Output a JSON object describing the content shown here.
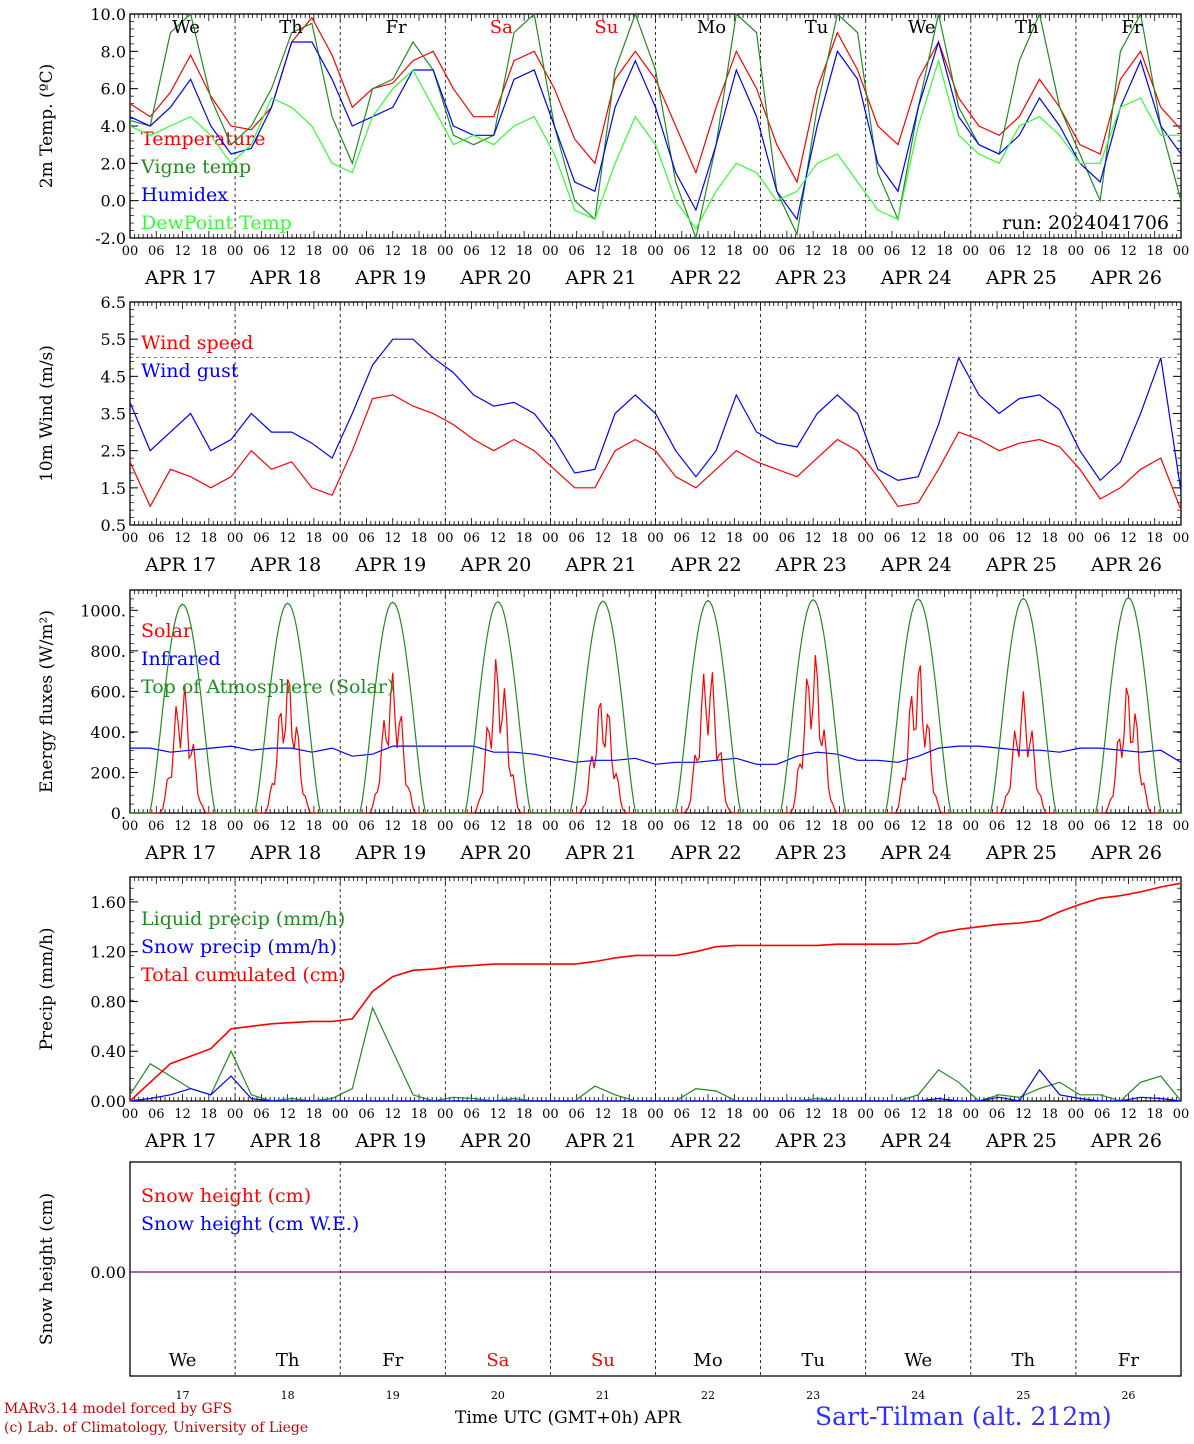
{
  "x_axis": {
    "day_labels": [
      "APR 17",
      "APR 18",
      "APR 19",
      "APR 20",
      "APR 21",
      "APR 22",
      "APR 23",
      "APR 24",
      "APR 25",
      "APR 26"
    ],
    "hour_labels": [
      "00",
      "06",
      "12",
      "18"
    ],
    "last_hour_label": "00",
    "weekdays": [
      "We",
      "Th",
      "Fr",
      "Sa",
      "Su",
      "Mo",
      "Tu",
      "We",
      "Th",
      "Fr"
    ],
    "weekend_weekdays": [
      "Sa",
      "Su"
    ],
    "day_numbers": [
      "17",
      "18",
      "19",
      "20",
      "21",
      "22",
      "23",
      "24",
      "25",
      "26"
    ],
    "xlabel": "Time UTC (GMT+0h)",
    "month": "APR"
  },
  "footer": {
    "model_line": "MARv3.14 model forced by GFS",
    "lab_line": "(c) Lab. of Climatology, University of Liege",
    "station": "Sart-Tilman (alt. 212m)"
  },
  "colors": {
    "red": "#ff0000",
    "green": "#228b22",
    "blue": "#0000ff",
    "light_green": "#32ff32",
    "purple": "#800080",
    "footer_red": "#cc0000",
    "station_blue": "#3030ff"
  },
  "chart_data": [
    {
      "id": "temperature",
      "type": "line",
      "ylabel": "2m Temp. (ºC)",
      "ylim": [
        -2.0,
        10.0
      ],
      "yticks": [
        "-2.0",
        "0.0",
        "2.0",
        "4.0",
        "6.0",
        "8.0",
        "10.0"
      ],
      "dashed_ref": 0.0,
      "annotation": "run: 2024041706",
      "series_step_hours": 6,
      "series": [
        {
          "name": "Temperature",
          "color": "red",
          "values": [
            5.2,
            4.5,
            5.8,
            7.8,
            5.6,
            4.0,
            3.8,
            5.0,
            8.5,
            9.8,
            7.8,
            5.0,
            6.0,
            6.3,
            7.5,
            8.0,
            6.0,
            4.5,
            4.5,
            7.5,
            8.0,
            6.0,
            3.3,
            2.0,
            6.5,
            8.0,
            6.5,
            4.0,
            1.5,
            5.0,
            8.0,
            6.0,
            3.0,
            1.0,
            6.0,
            9.0,
            7.0,
            4.0,
            3.0,
            6.5,
            8.5,
            5.5,
            4.0,
            3.5,
            4.5,
            6.5,
            5.0,
            3.0,
            2.5,
            6.5,
            8.0,
            5.0,
            3.8
          ]
        },
        {
          "name": "Vigne temp",
          "color": "green",
          "values": [
            4.3,
            4.0,
            9.0,
            10.0,
            5.5,
            3.0,
            4.0,
            6.0,
            9.0,
            9.5,
            4.5,
            2.0,
            6.0,
            6.5,
            8.5,
            7.0,
            3.5,
            3.0,
            3.5,
            9.0,
            10.0,
            4.0,
            0.0,
            -1.0,
            7.0,
            10.0,
            7.0,
            1.0,
            -2.0,
            3.0,
            10.0,
            9.0,
            0.5,
            -1.8,
            5.0,
            10.0,
            9.0,
            1.5,
            -1.0,
            5.0,
            10.0,
            5.0,
            3.0,
            2.5,
            7.5,
            10.0,
            5.0,
            2.5,
            0.0,
            8.0,
            10.0,
            4.0,
            0.0
          ]
        },
        {
          "name": "Humidex",
          "color": "blue",
          "values": [
            4.5,
            4.0,
            5.0,
            6.5,
            4.0,
            2.5,
            2.8,
            5.0,
            8.5,
            8.5,
            6.5,
            4.0,
            4.5,
            5.0,
            7.0,
            7.0,
            4.0,
            3.5,
            3.5,
            6.5,
            7.0,
            4.0,
            1.0,
            0.5,
            5.0,
            7.5,
            5.0,
            1.5,
            -0.5,
            3.0,
            7.0,
            4.5,
            0.5,
            -1.0,
            4.0,
            8.0,
            6.5,
            2.0,
            0.5,
            5.0,
            8.5,
            4.5,
            3.0,
            2.5,
            3.5,
            5.5,
            4.0,
            2.0,
            1.0,
            5.0,
            7.5,
            4.0,
            2.5
          ]
        },
        {
          "name": "DewPoint Temp",
          "color": "light_green",
          "values": [
            4.0,
            3.5,
            4.0,
            4.5,
            3.5,
            2.0,
            3.0,
            5.5,
            5.0,
            4.0,
            2.0,
            1.5,
            4.5,
            6.0,
            7.0,
            5.0,
            3.0,
            3.5,
            3.0,
            4.0,
            4.5,
            2.5,
            -0.5,
            -1.0,
            2.0,
            4.5,
            3.0,
            0.0,
            -1.5,
            0.5,
            2.0,
            1.5,
            0.0,
            0.5,
            2.0,
            2.5,
            1.0,
            -0.5,
            -1.0,
            4.0,
            7.5,
            3.5,
            2.5,
            2.0,
            4.0,
            4.5,
            3.5,
            2.0,
            2.0,
            5.0,
            5.5,
            3.5,
            3.5
          ]
        }
      ]
    },
    {
      "id": "wind",
      "type": "line",
      "ylabel": "10m Wind (m/s)",
      "ylim": [
        0.5,
        6.5
      ],
      "yticks": [
        "0.5",
        "1.5",
        "2.5",
        "3.5",
        "4.5",
        "5.5",
        "6.5"
      ],
      "dashed_ref": 5.0,
      "series_step_hours": 6,
      "series": [
        {
          "name": "Wind speed",
          "color": "red",
          "values": [
            2.2,
            1.0,
            2.0,
            1.8,
            1.5,
            1.8,
            2.5,
            2.0,
            2.2,
            1.5,
            1.3,
            2.5,
            3.9,
            4.0,
            3.7,
            3.5,
            3.2,
            2.8,
            2.5,
            2.8,
            2.5,
            2.0,
            1.5,
            1.5,
            2.5,
            2.8,
            2.5,
            1.8,
            1.5,
            2.0,
            2.5,
            2.2,
            2.0,
            1.8,
            2.3,
            2.8,
            2.5,
            1.8,
            1.0,
            1.1,
            2.0,
            3.0,
            2.8,
            2.5,
            2.7,
            2.8,
            2.6,
            2.0,
            1.2,
            1.5,
            2.0,
            2.3,
            0.9
          ]
        },
        {
          "name": "Wind gust",
          "color": "blue",
          "values": [
            3.8,
            2.5,
            3.0,
            3.5,
            2.5,
            2.8,
            3.5,
            3.0,
            3.0,
            2.7,
            2.3,
            3.5,
            4.8,
            5.5,
            5.5,
            5.0,
            4.6,
            4.0,
            3.7,
            3.8,
            3.5,
            2.8,
            1.9,
            2.0,
            3.5,
            4.0,
            3.5,
            2.5,
            1.8,
            2.5,
            4.0,
            3.0,
            2.7,
            2.6,
            3.5,
            4.0,
            3.5,
            2.0,
            1.7,
            1.8,
            3.2,
            5.0,
            4.0,
            3.5,
            3.9,
            4.0,
            3.6,
            2.5,
            1.7,
            2.2,
            3.5,
            5.0,
            1.4
          ]
        }
      ]
    },
    {
      "id": "energy",
      "type": "line",
      "ylabel": "Energy fluxes (W/m²)",
      "ylim": [
        0,
        1100
      ],
      "yticks": [
        "0.",
        "200.",
        "400.",
        "600.",
        "800.",
        "1000."
      ],
      "series": [
        {
          "name": "Solar",
          "color": "red",
          "day_peaks": [
            650,
            700,
            700,
            780,
            600,
            760,
            820,
            770,
            600,
            650
          ]
        },
        {
          "name": "Infrared",
          "color": "blue",
          "values": [
            320,
            320,
            300,
            310,
            320,
            330,
            310,
            320,
            320,
            300,
            320,
            280,
            290,
            330,
            330,
            330,
            330,
            330,
            300,
            300,
            290,
            270,
            250,
            260,
            260,
            270,
            240,
            250,
            250,
            260,
            270,
            240,
            240,
            280,
            300,
            290,
            260,
            260,
            250,
            280,
            320,
            330,
            330,
            320,
            310,
            310,
            300,
            320,
            320,
            310,
            300,
            310,
            250
          ]
        },
        {
          "name": "Top of Atmosphere (Solar)",
          "color": "green",
          "day_peaks": [
            1030,
            1035,
            1040,
            1042,
            1045,
            1048,
            1052,
            1055,
            1058,
            1062
          ]
        }
      ]
    },
    {
      "id": "precip",
      "type": "line",
      "ylabel": "Precip (mm/h)",
      "ylim": [
        0,
        1.8
      ],
      "yticks": [
        "0.00",
        "0.40",
        "0.80",
        "1.20",
        "1.60"
      ],
      "series_step_hours": 6,
      "series": [
        {
          "name": "Liquid precip (mm/h)",
          "color": "green",
          "values": [
            0.05,
            0.3,
            0.2,
            0.1,
            0.05,
            0.4,
            0.05,
            0.0,
            0.02,
            0.0,
            0.02,
            0.1,
            0.75,
            0.4,
            0.05,
            0.0,
            0.03,
            0.02,
            0.0,
            0.02,
            0.0,
            0.0,
            0.0,
            0.12,
            0.05,
            0.0,
            0.0,
            0.0,
            0.1,
            0.08,
            0.0,
            0.0,
            0.0,
            0.0,
            0.02,
            0.0,
            0.0,
            0.0,
            0.0,
            0.05,
            0.25,
            0.15,
            0.0,
            0.05,
            0.03,
            0.1,
            0.15,
            0.05,
            0.05,
            0.0,
            0.15,
            0.2,
            0.0
          ]
        },
        {
          "name": "Snow precip (mm/h)",
          "color": "blue",
          "values": [
            0.0,
            0.02,
            0.05,
            0.1,
            0.05,
            0.2,
            0.02,
            0.0,
            0.0,
            0.0,
            0.0,
            0.0,
            0.0,
            0.0,
            0.0,
            0.0,
            0.0,
            0.0,
            0.0,
            0.0,
            0.0,
            0.0,
            0.0,
            0.0,
            0.0,
            0.0,
            0.0,
            0.0,
            0.0,
            0.0,
            0.0,
            0.0,
            0.0,
            0.0,
            0.0,
            0.0,
            0.0,
            0.0,
            0.0,
            0.0,
            0.02,
            0.0,
            0.0,
            0.03,
            0.0,
            0.25,
            0.05,
            0.02,
            0.0,
            0.0,
            0.03,
            0.02,
            0.0
          ]
        },
        {
          "name": "Total cumulated (cm)",
          "color": "red",
          "values": [
            0.0,
            0.15,
            0.3,
            0.36,
            0.42,
            0.58,
            0.6,
            0.62,
            0.63,
            0.64,
            0.64,
            0.66,
            0.88,
            1.0,
            1.05,
            1.06,
            1.08,
            1.09,
            1.1,
            1.1,
            1.1,
            1.1,
            1.1,
            1.12,
            1.15,
            1.17,
            1.17,
            1.17,
            1.2,
            1.24,
            1.25,
            1.25,
            1.25,
            1.25,
            1.25,
            1.26,
            1.26,
            1.26,
            1.26,
            1.27,
            1.35,
            1.38,
            1.4,
            1.42,
            1.43,
            1.45,
            1.52,
            1.58,
            1.63,
            1.65,
            1.68,
            1.72,
            1.75
          ]
        }
      ]
    },
    {
      "id": "snow",
      "type": "line",
      "ylabel": "Snow height (cm)",
      "yticks": [
        "0.00"
      ],
      "series": [
        {
          "name": "Snow height (cm)",
          "color": "red",
          "values": [
            0.0,
            0.0
          ]
        },
        {
          "name": "Snow height (cm W.E.)",
          "color": "blue",
          "values": [
            0.0,
            0.0
          ]
        }
      ]
    }
  ]
}
